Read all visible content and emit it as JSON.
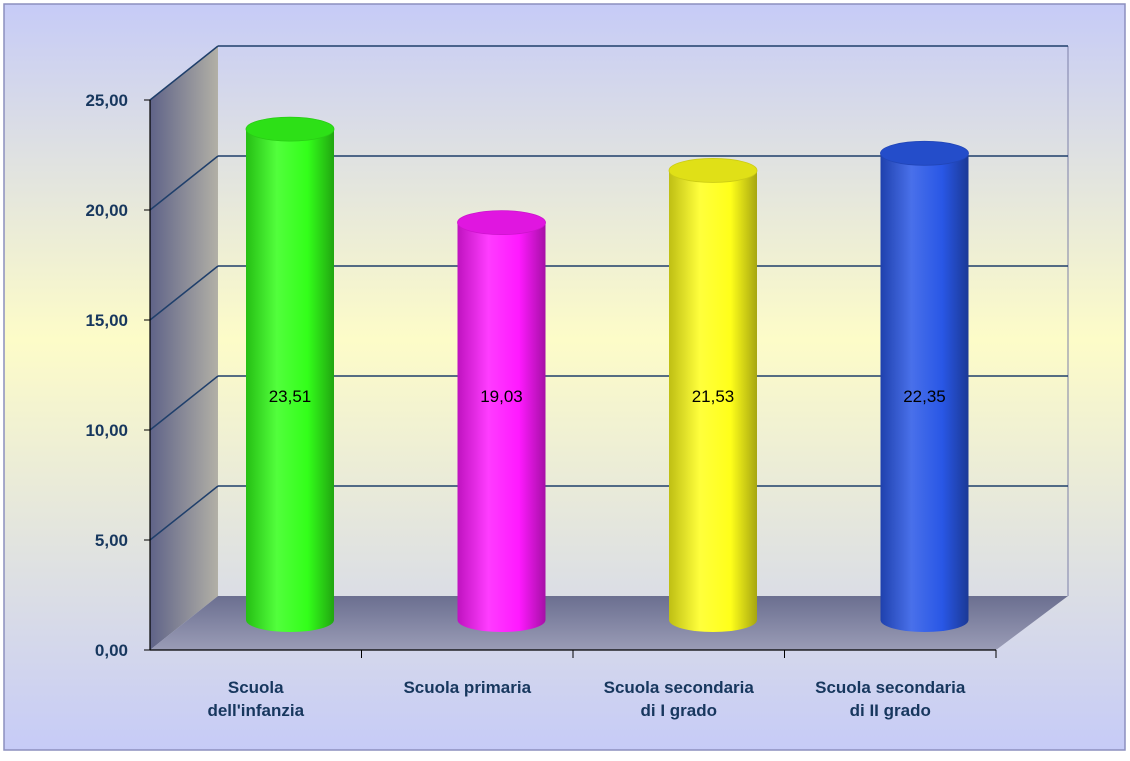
{
  "chart_data": {
    "type": "bar",
    "style": "3d-cylinder",
    "categories": [
      [
        "Scuola",
        "dell'infanzia"
      ],
      [
        "Scuola primaria"
      ],
      [
        "Scuola secondaria",
        "di I grado"
      ],
      [
        "Scuola secondaria",
        "di II grado"
      ]
    ],
    "values": [
      23.51,
      19.03,
      21.53,
      22.35
    ],
    "data_labels": [
      "23,51",
      "19,03",
      "21,53",
      "22,35"
    ],
    "bar_colors": [
      "#33ff1a",
      "#ff19ff",
      "#ffff1a",
      "#2957e6"
    ],
    "yticks": [
      "0,00",
      "5,00",
      "10,00",
      "15,00",
      "20,00",
      "25,00"
    ],
    "ylim": [
      0,
      25
    ],
    "grid": true,
    "legend": "none",
    "colors": {
      "background_top": "#c7ccf7",
      "background_middle": "#fdfcc7",
      "border": "#8c8fbe",
      "gridline": "#1f3f6b",
      "text": "#17375e"
    }
  }
}
